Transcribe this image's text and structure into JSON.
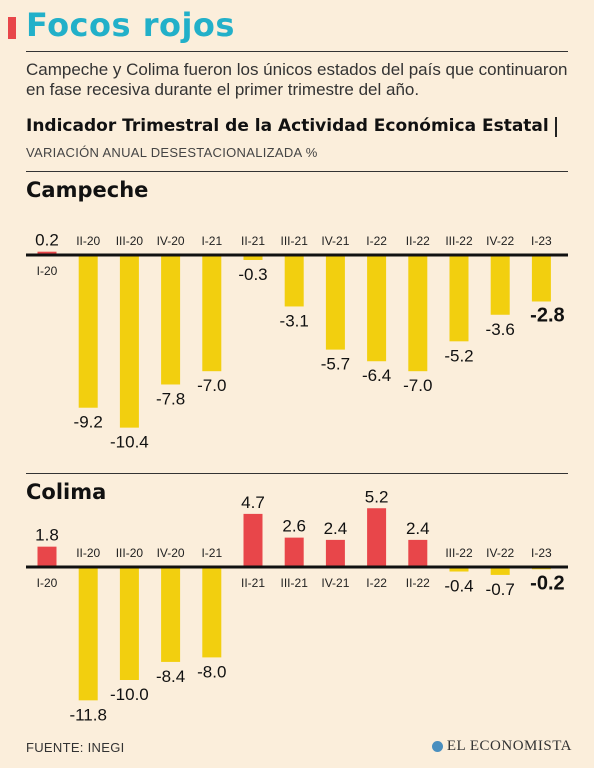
{
  "header": {
    "title": "Focos rojos",
    "subtitle": "Campeche y Colima fueron los únicos estados del país que continuaron en fase recesiva durante el primer trimestre del año.",
    "indicator_title": "Indicador Trimestral de la Actividad Económica Estatal",
    "indicator_subtitle": "VARIACIÓN ANUAL DESESTACIONALIZADA %"
  },
  "colors": {
    "title": "#22b0c9",
    "positive_bar": "#e8464a",
    "negative_bar": "#f2cf0f",
    "background": "#fbeedb"
  },
  "chart_data": [
    {
      "type": "bar",
      "title": "Campeche",
      "categories": [
        "I-20",
        "II-20",
        "III-20",
        "IV-20",
        "I-21",
        "II-21",
        "III-21",
        "IV-21",
        "I-22",
        "II-22",
        "III-22",
        "IV-22",
        "I-23"
      ],
      "values": [
        0.2,
        -9.2,
        -10.4,
        -7.8,
        -7.0,
        -0.3,
        -3.1,
        -5.7,
        -6.4,
        -7.0,
        -5.2,
        -3.6,
        -2.8
      ],
      "value_labels": [
        "0.2",
        "-9.2",
        "-10.4",
        "-7.8",
        "-7.0",
        "-0.3",
        "-3.1",
        "-5.7",
        "-6.4",
        "-7.0",
        "-5.2",
        "-3.6",
        "-2.8"
      ],
      "highlight_last": true
    },
    {
      "type": "bar",
      "title": "Colima",
      "categories": [
        "I-20",
        "II-20",
        "III-20",
        "IV-20",
        "I-21",
        "II-21",
        "III-21",
        "IV-21",
        "I-22",
        "II-22",
        "III-22",
        "IV-22",
        "I-23"
      ],
      "values": [
        1.8,
        -11.8,
        -10.0,
        -8.4,
        -8.0,
        4.7,
        2.6,
        2.4,
        5.2,
        2.4,
        -0.4,
        -0.7,
        -0.2
      ],
      "value_labels": [
        "1.8",
        "-11.8",
        "-10.0",
        "-8.4",
        "-8.0",
        "4.7",
        "2.6",
        "2.4",
        "5.2",
        "2.4",
        "-0.4",
        "-0.7",
        "-0.2"
      ],
      "highlight_last": true
    }
  ],
  "footer": {
    "source": "FUENTE: INEGI",
    "brand": "EL ECONOMISTA"
  }
}
